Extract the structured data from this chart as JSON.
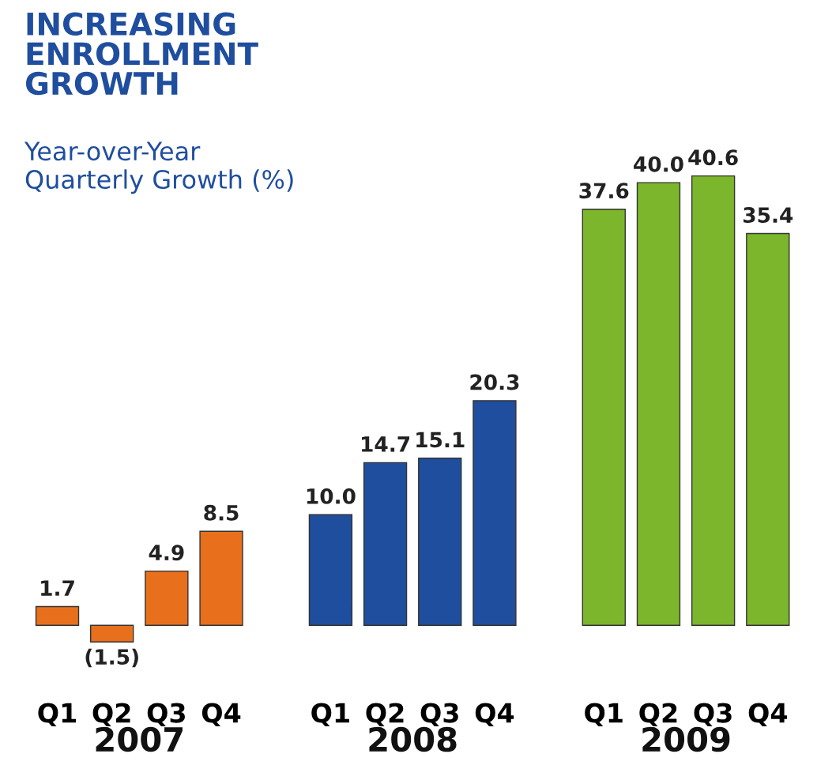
{
  "chart_data": {
    "type": "bar",
    "title": "INCREASING\nENROLLMENT\nGROWTH",
    "subtitle": "Year-over-Year\nQuarterly Growth (%)",
    "categories": [
      "Q1",
      "Q2",
      "Q3",
      "Q4",
      null,
      "Q1",
      "Q2",
      "Q3",
      "Q4",
      null,
      "Q1",
      "Q2",
      "Q3",
      "Q4"
    ],
    "values": [
      1.7,
      -1.5,
      4.9,
      8.5,
      null,
      10.0,
      14.7,
      15.1,
      20.3,
      null,
      37.6,
      40.0,
      40.6,
      35.4
    ],
    "colors": [
      "#e8701c",
      "#e8701c",
      "#e8701c",
      "#e8701c",
      "#ffffff",
      "#1f4e9e",
      "#1f4e9e",
      "#1f4e9e",
      "#1f4e9e",
      "#ffffff",
      "#7cb62c",
      "#7cb62c",
      "#7cb62c",
      "#7cb62c"
    ],
    "value_labels": [
      "1.7",
      "(1.5)",
      "4.9",
      "8.5",
      null,
      "10.0",
      "14.7",
      "15.1",
      "20.3",
      null,
      "37.6",
      "40.0",
      "40.6",
      "35.4"
    ],
    "annotations": [
      "2007",
      "2008",
      "2009"
    ],
    "tick_labels": "x",
    "grid": false,
    "legend": false
  }
}
